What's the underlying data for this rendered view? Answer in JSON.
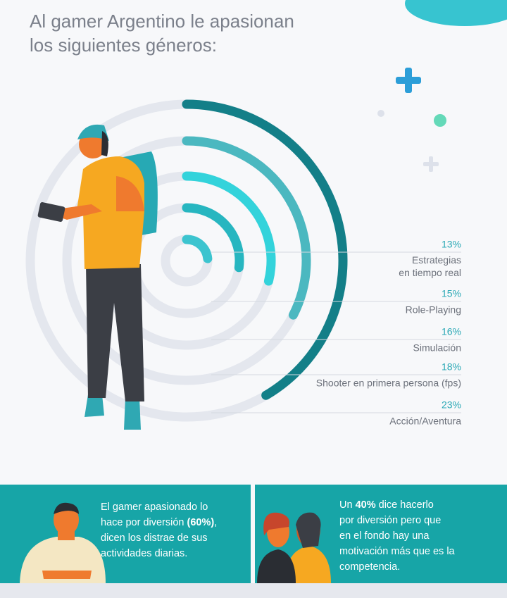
{
  "chart_data": {
    "type": "radialbar",
    "title": [
      "Al gamer Argentino le apasionan",
      "los siguientes géneros:"
    ],
    "categories": [
      [
        "Estrategias",
        "en tiempo real"
      ],
      "Role-Playing",
      "Simulación",
      "Shooter en primera persona (fps)",
      "Acción/Aventura"
    ],
    "values": [
      13,
      15,
      16,
      18,
      23
    ],
    "value_labels": [
      "13%",
      "15%",
      "16%",
      "18%",
      "23%"
    ],
    "colors": [
      "#3cc4cf",
      "#27b6c0",
      "#33d3db",
      "#4bb8c0",
      "#137f88"
    ]
  },
  "panels": [
    {
      "lines": [
        [
          "El gamer apasionado lo"
        ],
        [
          "hace por diversión ",
          "(60%)",
          ","
        ],
        [
          "dicen los distrae de sus"
        ],
        [
          "actividades diarias."
        ]
      ]
    },
    {
      "lines": [
        [
          "Un ",
          "40%",
          " dice hacerlo"
        ],
        [
          " por diversión pero que"
        ],
        [
          "en el fondo hay una"
        ],
        [
          "motivación más que es la"
        ],
        [
          "competencia."
        ]
      ]
    }
  ]
}
